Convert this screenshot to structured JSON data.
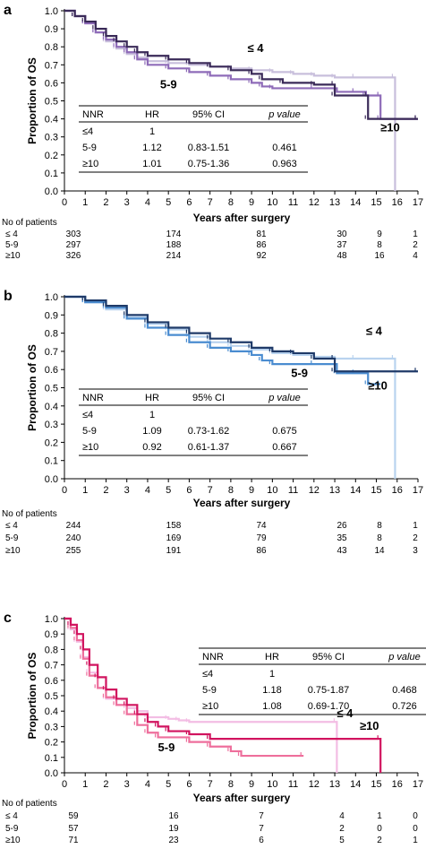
{
  "chart_data": [
    {
      "type": "line",
      "panel": "a",
      "xlabel": "Years after surgery",
      "ylabel": "Proportion of OS",
      "xlim": [
        0,
        17
      ],
      "ylim": [
        0,
        1.0
      ],
      "x_ticks": [
        "0",
        "1",
        "2",
        "3",
        "4",
        "5",
        "6",
        "7",
        "8",
        "9",
        "10",
        "11",
        "12",
        "13",
        "14",
        "15",
        "16",
        "17"
      ],
      "y_ticks": [
        "0.0",
        "0.1",
        "0.2",
        "0.3",
        "0.4",
        "0.5",
        "0.6",
        "0.7",
        "0.8",
        "0.9",
        "1.0"
      ],
      "grid": false,
      "series": [
        {
          "name": "≤ 4",
          "color": "#c8bfdc",
          "points": [
            [
              0,
              1.0
            ],
            [
              0.5,
              0.97
            ],
            [
              1,
              0.93
            ],
            [
              1.5,
              0.88
            ],
            [
              2,
              0.83
            ],
            [
              2.5,
              0.79
            ],
            [
              3,
              0.76
            ],
            [
              3.5,
              0.74
            ],
            [
              4,
              0.72
            ],
            [
              5,
              0.71
            ],
            [
              6,
              0.7
            ],
            [
              7,
              0.69
            ],
            [
              8,
              0.68
            ],
            [
              9,
              0.67
            ],
            [
              10,
              0.66
            ],
            [
              11,
              0.65
            ],
            [
              12,
              0.64
            ],
            [
              13,
              0.63
            ],
            [
              14,
              0.63
            ],
            [
              15.9,
              0.63
            ],
            [
              15.9,
              0.0
            ]
          ]
        },
        {
          "name": "5-9",
          "color": "#8e6bb8",
          "points": [
            [
              0,
              1.0
            ],
            [
              0.5,
              0.97
            ],
            [
              1,
              0.93
            ],
            [
              1.5,
              0.88
            ],
            [
              2,
              0.84
            ],
            [
              2.5,
              0.8
            ],
            [
              3,
              0.77
            ],
            [
              3.5,
              0.73
            ],
            [
              4,
              0.7
            ],
            [
              5,
              0.68
            ],
            [
              6,
              0.66
            ],
            [
              7,
              0.64
            ],
            [
              8,
              0.62
            ],
            [
              9,
              0.6
            ],
            [
              9.5,
              0.58
            ],
            [
              10,
              0.57
            ],
            [
              12,
              0.57
            ],
            [
              13.1,
              0.55
            ],
            [
              14,
              0.55
            ],
            [
              14.5,
              0.53
            ],
            [
              15.2,
              0.53
            ],
            [
              15.2,
              0.4
            ],
            [
              17,
              0.4
            ]
          ]
        },
        {
          "name": "≥10",
          "color": "#3a2a58",
          "points": [
            [
              0,
              1.0
            ],
            [
              0.5,
              0.97
            ],
            [
              1,
              0.94
            ],
            [
              1.5,
              0.9
            ],
            [
              2,
              0.86
            ],
            [
              2.5,
              0.83
            ],
            [
              3,
              0.8
            ],
            [
              3.5,
              0.77
            ],
            [
              4,
              0.75
            ],
            [
              5,
              0.73
            ],
            [
              6,
              0.71
            ],
            [
              7,
              0.69
            ],
            [
              8,
              0.67
            ],
            [
              9,
              0.65
            ],
            [
              9.5,
              0.62
            ],
            [
              10.5,
              0.6
            ],
            [
              12,
              0.59
            ],
            [
              13,
              0.59
            ],
            [
              13,
              0.53
            ],
            [
              14.6,
              0.53
            ],
            [
              14.6,
              0.4
            ],
            [
              17,
              0.4
            ]
          ]
        }
      ],
      "labels": {
        "le4": "≤ 4",
        "mid": "5-9",
        "ge10": "≥10"
      },
      "table": {
        "headers": [
          "NNR",
          "HR",
          "95% CI",
          "p value"
        ],
        "rows": [
          [
            "≤4",
            "1",
            "",
            ""
          ],
          [
            "5-9",
            "1.12",
            "0.83-1.51",
            "0.461"
          ],
          [
            "≥10",
            "1.01",
            "0.75-1.36",
            "0.963"
          ]
        ]
      },
      "at_risk": {
        "title": "No of patients",
        "rows": [
          {
            "label": "≤ 4",
            "values": [
              "303",
              "174",
              "81",
              "30",
              "9",
              "1"
            ]
          },
          {
            "label": "5-9",
            "values": [
              "297",
              "188",
              "86",
              "37",
              "8",
              "2"
            ]
          },
          {
            "label": "≥10",
            "values": [
              "326",
              "214",
              "92",
              "48",
              "16",
              "4"
            ]
          }
        ]
      }
    },
    {
      "type": "line",
      "panel": "b",
      "xlabel": "Years after surgery",
      "ylabel": "Proportion of OS",
      "xlim": [
        0,
        17
      ],
      "ylim": [
        0,
        1.0
      ],
      "x_ticks": [
        "0",
        "1",
        "2",
        "3",
        "4",
        "5",
        "6",
        "7",
        "8",
        "9",
        "10",
        "11",
        "12",
        "13",
        "14",
        "15",
        "16",
        "17"
      ],
      "y_ticks": [
        "0.0",
        "0.1",
        "0.2",
        "0.3",
        "0.4",
        "0.5",
        "0.6",
        "0.7",
        "0.8",
        "0.9",
        "1.0"
      ],
      "grid": false,
      "series": [
        {
          "name": "≤ 4",
          "color": "#b9d3ef",
          "points": [
            [
              0,
              1.0
            ],
            [
              1,
              0.97
            ],
            [
              2,
              0.93
            ],
            [
              3,
              0.89
            ],
            [
              4,
              0.85
            ],
            [
              5,
              0.82
            ],
            [
              6,
              0.78
            ],
            [
              7,
              0.75
            ],
            [
              8,
              0.73
            ],
            [
              9,
              0.71
            ],
            [
              10,
              0.69
            ],
            [
              11,
              0.68
            ],
            [
              12,
              0.67
            ],
            [
              13,
              0.66
            ],
            [
              14,
              0.66
            ],
            [
              15.9,
              0.66
            ],
            [
              15.9,
              0.0
            ]
          ]
        },
        {
          "name": "5-9",
          "color": "#4a8cd0",
          "points": [
            [
              0,
              1.0
            ],
            [
              1,
              0.97
            ],
            [
              2,
              0.94
            ],
            [
              3,
              0.88
            ],
            [
              4,
              0.83
            ],
            [
              5,
              0.79
            ],
            [
              6,
              0.75
            ],
            [
              7,
              0.72
            ],
            [
              8,
              0.7
            ],
            [
              9,
              0.68
            ],
            [
              9.5,
              0.65
            ],
            [
              10,
              0.63
            ],
            [
              12,
              0.63
            ],
            [
              13.1,
              0.58
            ],
            [
              14,
              0.58
            ],
            [
              14.6,
              0.52
            ],
            [
              15.2,
              0.52
            ]
          ]
        },
        {
          "name": "≥10",
          "color": "#1f3a68",
          "points": [
            [
              0,
              1.0
            ],
            [
              1,
              0.98
            ],
            [
              2,
              0.95
            ],
            [
              3,
              0.9
            ],
            [
              4,
              0.86
            ],
            [
              5,
              0.83
            ],
            [
              6,
              0.8
            ],
            [
              7,
              0.77
            ],
            [
              8,
              0.75
            ],
            [
              9,
              0.72
            ],
            [
              10,
              0.7
            ],
            [
              11,
              0.69
            ],
            [
              12,
              0.66
            ],
            [
              13,
              0.66
            ],
            [
              13,
              0.59
            ],
            [
              17,
              0.59
            ]
          ]
        }
      ],
      "labels": {
        "le4": "≤ 4",
        "mid": "5-9",
        "ge10": "≥10"
      },
      "table": {
        "headers": [
          "NNR",
          "HR",
          "95% CI",
          "p value"
        ],
        "rows": [
          [
            "≤4",
            "1",
            "",
            ""
          ],
          [
            "5-9",
            "1.09",
            "0.73-1.62",
            "0.675"
          ],
          [
            "≥10",
            "0.92",
            "0.61-1.37",
            "0.667"
          ]
        ]
      },
      "at_risk": {
        "title": "No of patients",
        "rows": [
          {
            "label": "≤ 4",
            "values": [
              "244",
              "158",
              "74",
              "26",
              "8",
              "1"
            ]
          },
          {
            "label": "5-9",
            "values": [
              "240",
              "169",
              "79",
              "35",
              "8",
              "2"
            ]
          },
          {
            "label": "≥10",
            "values": [
              "255",
              "191",
              "86",
              "43",
              "14",
              "3"
            ]
          }
        ]
      }
    },
    {
      "type": "line",
      "panel": "c",
      "xlabel": "Years after surgery",
      "ylabel": "Proportion of OS",
      "xlim": [
        0,
        17
      ],
      "ylim": [
        0,
        1.0
      ],
      "x_ticks": [
        "0",
        "1",
        "2",
        "3",
        "4",
        "5",
        "6",
        "7",
        "8",
        "9",
        "10",
        "11",
        "12",
        "13",
        "14",
        "15",
        "16",
        "17"
      ],
      "y_ticks": [
        "0.0",
        "0.1",
        "0.2",
        "0.3",
        "0.4",
        "0.5",
        "0.6",
        "0.7",
        "0.8",
        "0.9",
        "1.0"
      ],
      "grid": false,
      "series": [
        {
          "name": "≤ 4",
          "color": "#f3bde4",
          "points": [
            [
              0,
              1.0
            ],
            [
              0.3,
              0.93
            ],
            [
              0.6,
              0.85
            ],
            [
              0.9,
              0.75
            ],
            [
              1.2,
              0.65
            ],
            [
              1.6,
              0.55
            ],
            [
              2,
              0.48
            ],
            [
              2.5,
              0.44
            ],
            [
              3,
              0.42
            ],
            [
              3.5,
              0.4
            ],
            [
              4,
              0.36
            ],
            [
              5,
              0.35
            ],
            [
              5.5,
              0.34
            ],
            [
              6,
              0.33
            ],
            [
              13.1,
              0.33
            ],
            [
              13.1,
              0.0
            ]
          ]
        },
        {
          "name": "5-9",
          "color": "#ee6f9c",
          "points": [
            [
              0,
              1.0
            ],
            [
              0.3,
              0.94
            ],
            [
              0.6,
              0.86
            ],
            [
              0.9,
              0.74
            ],
            [
              1.2,
              0.63
            ],
            [
              1.6,
              0.55
            ],
            [
              2,
              0.49
            ],
            [
              2.5,
              0.44
            ],
            [
              3,
              0.38
            ],
            [
              3.5,
              0.31
            ],
            [
              4,
              0.26
            ],
            [
              4.5,
              0.23
            ],
            [
              6,
              0.2
            ],
            [
              7,
              0.17
            ],
            [
              8,
              0.14
            ],
            [
              8.5,
              0.11
            ],
            [
              11.5,
              0.11
            ]
          ]
        },
        {
          "name": "≥10",
          "color": "#d1145f",
          "points": [
            [
              0,
              1.0
            ],
            [
              0.3,
              0.96
            ],
            [
              0.6,
              0.9
            ],
            [
              0.9,
              0.8
            ],
            [
              1.2,
              0.7
            ],
            [
              1.6,
              0.62
            ],
            [
              2,
              0.54
            ],
            [
              2.5,
              0.48
            ],
            [
              3,
              0.44
            ],
            [
              3.5,
              0.38
            ],
            [
              4,
              0.33
            ],
            [
              4.5,
              0.3
            ],
            [
              5,
              0.27
            ],
            [
              6,
              0.25
            ],
            [
              7,
              0.22
            ],
            [
              15.2,
              0.22
            ],
            [
              15.2,
              0.0
            ]
          ]
        }
      ],
      "labels": {
        "le4": "≤ 4",
        "mid": "5-9",
        "ge10": "≥10"
      },
      "table": {
        "headers": [
          "NNR",
          "HR",
          "95% CI",
          "p value"
        ],
        "rows": [
          [
            "≤4",
            "1",
            "",
            ""
          ],
          [
            "5-9",
            "1.18",
            "0.75-1.87",
            "0.468"
          ],
          [
            "≥10",
            "1.08",
            "0.69-1.70",
            "0.726"
          ]
        ]
      },
      "at_risk": {
        "title": "No of patients",
        "rows": [
          {
            "label": "≤ 4",
            "values": [
              "59",
              "16",
              "7",
              "4",
              "1",
              "0"
            ]
          },
          {
            "label": "5-9",
            "values": [
              "57",
              "19",
              "7",
              "2",
              "0",
              "0"
            ]
          },
          {
            "label": "≥10",
            "values": [
              "71",
              "23",
              "6",
              "5",
              "2",
              "1"
            ]
          }
        ]
      }
    }
  ]
}
